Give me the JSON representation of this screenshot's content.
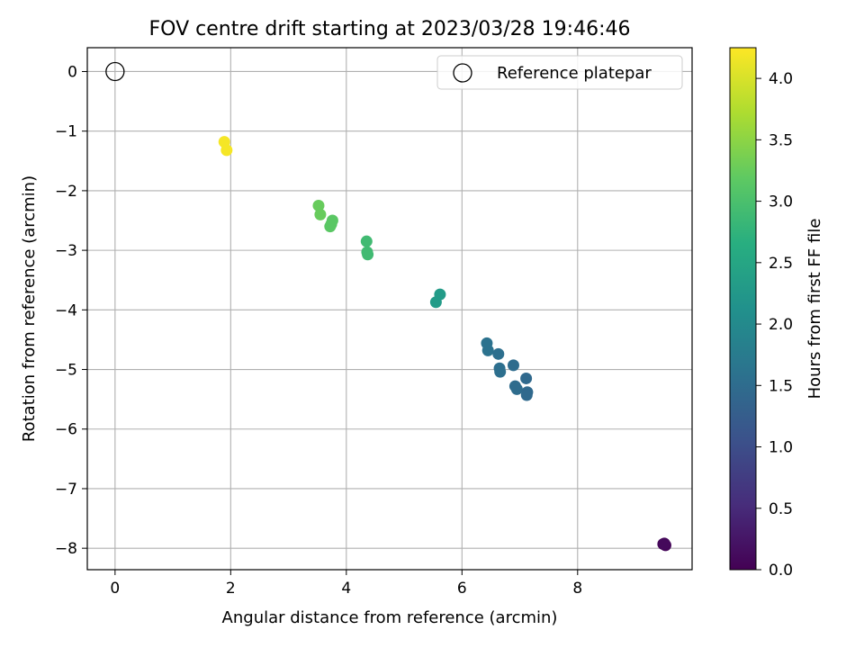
{
  "chart_data": {
    "type": "scatter",
    "title": "FOV centre drift starting at 2023/03/28 19:46:46",
    "xlabel": "Angular distance from reference (arcmin)",
    "ylabel": "Rotation from reference (arcmin)",
    "xlim": [
      -0.48,
      9.98
    ],
    "ylim": [
      -8.36,
      0.4
    ],
    "xticks": [
      0,
      2,
      4,
      6,
      8
    ],
    "yticks": [
      0,
      -1,
      -2,
      -3,
      -4,
      -5,
      -6,
      -7,
      -8
    ],
    "grid": true,
    "legend": {
      "placement": "top-right",
      "entries": [
        "Reference platepar"
      ]
    },
    "reference_point": {
      "x": 0,
      "y": 0,
      "label": "Reference platepar"
    },
    "colorbar": {
      "label": "Hours from first FF file",
      "colormap": "viridis",
      "range": [
        0.0,
        4.25
      ],
      "ticks": [
        0.0,
        0.5,
        1.0,
        1.5,
        2.0,
        2.5,
        3.0,
        3.5,
        4.0
      ]
    },
    "points": [
      {
        "x": 9.48,
        "y": -7.93,
        "hours": 0.05
      },
      {
        "x": 9.52,
        "y": -7.95,
        "hours": 0.05
      },
      {
        "x": 9.5,
        "y": -7.92,
        "hours": 0.1
      },
      {
        "x": 6.43,
        "y": -4.56,
        "hours": 1.6
      },
      {
        "x": 6.45,
        "y": -4.68,
        "hours": 1.6
      },
      {
        "x": 6.63,
        "y": -4.74,
        "hours": 1.55
      },
      {
        "x": 6.65,
        "y": -4.98,
        "hours": 1.55
      },
      {
        "x": 6.66,
        "y": -5.04,
        "hours": 1.55
      },
      {
        "x": 6.89,
        "y": -4.93,
        "hours": 1.5
      },
      {
        "x": 6.92,
        "y": -5.28,
        "hours": 1.5
      },
      {
        "x": 6.95,
        "y": -5.33,
        "hours": 1.5
      },
      {
        "x": 7.11,
        "y": -5.15,
        "hours": 1.45
      },
      {
        "x": 7.13,
        "y": -5.38,
        "hours": 1.45
      },
      {
        "x": 7.12,
        "y": -5.43,
        "hours": 1.45
      },
      {
        "x": 5.55,
        "y": -3.87,
        "hours": 2.3
      },
      {
        "x": 5.62,
        "y": -3.74,
        "hours": 2.3
      },
      {
        "x": 4.35,
        "y": -2.85,
        "hours": 2.9
      },
      {
        "x": 4.36,
        "y": -3.03,
        "hours": 2.9
      },
      {
        "x": 4.37,
        "y": -3.07,
        "hours": 2.9
      },
      {
        "x": 3.52,
        "y": -2.25,
        "hours": 3.25
      },
      {
        "x": 3.55,
        "y": -2.4,
        "hours": 3.25
      },
      {
        "x": 3.72,
        "y": -2.6,
        "hours": 3.15
      },
      {
        "x": 3.76,
        "y": -2.5,
        "hours": 3.15
      },
      {
        "x": 3.74,
        "y": -2.56,
        "hours": 3.15
      },
      {
        "x": 1.89,
        "y": -1.18,
        "hours": 4.2
      },
      {
        "x": 1.93,
        "y": -1.32,
        "hours": 4.2
      }
    ]
  }
}
